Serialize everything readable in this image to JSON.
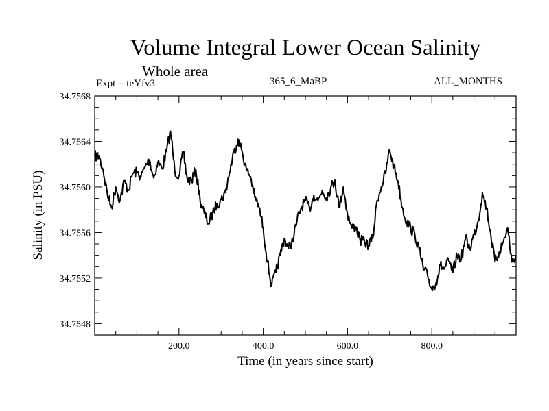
{
  "chart_data": {
    "type": "line",
    "title": "Volume Integral Lower Ocean Salinity",
    "subtitle": "Whole area",
    "annotations": {
      "experiment": "Expt = teYfv3",
      "run": "365_6_MaBP",
      "months": "ALL_MONTHS"
    },
    "xlabel": "Time (in years since start)",
    "ylabel": "Salinity (in PSU)",
    "xlim": [
      0,
      1000
    ],
    "ylim": [
      34.7547,
      34.7568
    ],
    "x_ticks": [
      200,
      400,
      600,
      800
    ],
    "x_tick_labels": [
      "200.0",
      "400.0",
      "600.0",
      "800.0"
    ],
    "x_minor_step": 50,
    "y_ticks": [
      34.7548,
      34.7552,
      34.7556,
      34.756,
      34.7564,
      34.7568
    ],
    "y_tick_labels": [
      "34.7548",
      "34.7552",
      "34.7556",
      "34.7560",
      "34.7564",
      "34.7568"
    ],
    "y_minor_step": 0.0001,
    "grid": false,
    "legend": "none",
    "series": [
      {
        "name": "Salinity",
        "color": "#000000",
        "x": [
          0,
          10,
          20,
          30,
          40,
          50,
          60,
          70,
          80,
          90,
          100,
          110,
          120,
          130,
          140,
          150,
          160,
          170,
          180,
          190,
          200,
          210,
          220,
          230,
          240,
          250,
          260,
          270,
          280,
          290,
          300,
          310,
          320,
          330,
          340,
          350,
          360,
          370,
          380,
          390,
          400,
          410,
          420,
          430,
          440,
          450,
          460,
          470,
          480,
          490,
          500,
          510,
          520,
          530,
          540,
          550,
          560,
          570,
          580,
          590,
          600,
          610,
          620,
          630,
          640,
          650,
          660,
          670,
          680,
          690,
          700,
          710,
          720,
          730,
          740,
          750,
          760,
          770,
          780,
          790,
          800,
          810,
          820,
          830,
          840,
          850,
          860,
          870,
          880,
          890,
          900,
          910,
          920,
          930,
          940,
          950,
          960,
          970,
          980,
          990,
          1000
        ],
        "values": [
          34.75627,
          34.75627,
          34.75615,
          34.75594,
          34.75582,
          34.756,
          34.75588,
          34.75605,
          34.75597,
          34.75612,
          34.75613,
          34.75609,
          34.75618,
          34.75624,
          34.75608,
          34.75622,
          34.75616,
          34.75631,
          34.75649,
          34.75614,
          34.7561,
          34.7563,
          34.75606,
          34.75606,
          34.75615,
          34.75589,
          34.75577,
          34.75568,
          34.75577,
          34.75585,
          34.75589,
          34.75595,
          34.75613,
          34.7563,
          34.75642,
          34.75631,
          34.75615,
          34.75609,
          34.75591,
          34.75582,
          34.75564,
          34.75534,
          34.75513,
          34.75525,
          34.7554,
          34.75555,
          34.75546,
          34.75553,
          34.7557,
          34.75582,
          34.75588,
          34.75581,
          34.75593,
          34.75588,
          34.75597,
          34.75591,
          34.75599,
          34.75606,
          34.75582,
          34.756,
          34.75576,
          34.75564,
          34.75565,
          34.75553,
          34.75552,
          34.75549,
          34.75555,
          34.75588,
          34.756,
          34.75612,
          34.75633,
          34.75618,
          34.75605,
          34.75582,
          34.7557,
          34.75564,
          34.75558,
          34.75545,
          34.75528,
          34.75522,
          34.7551,
          34.75516,
          34.75531,
          34.75528,
          34.75535,
          34.75525,
          34.7554,
          34.75537,
          34.75555,
          34.75546,
          34.75558,
          34.7557,
          34.75595,
          34.75582,
          34.75558,
          34.75534,
          34.75543,
          34.75552,
          34.75564,
          34.75534,
          34.7554
        ]
      }
    ]
  }
}
